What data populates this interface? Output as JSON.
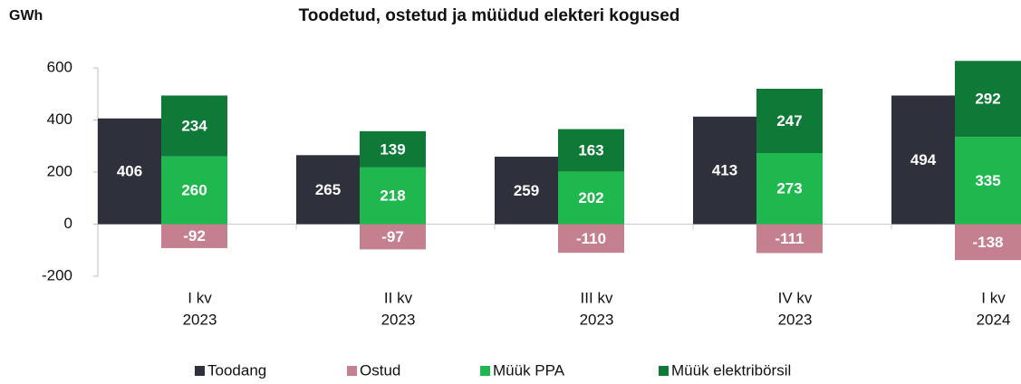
{
  "chart_data": {
    "type": "stacked_bar",
    "title": "Toodetud, ostetud ja müüdud elekteri kogused",
    "ylabel": "GWh",
    "categories": [
      [
        "I kv",
        "2023"
      ],
      [
        "II kv",
        "2023"
      ],
      [
        "III kv",
        "2023"
      ],
      [
        "IV kv",
        "2023"
      ],
      [
        "I kv",
        "2024"
      ]
    ],
    "series": [
      {
        "name": "Toodang",
        "color": "#2e303b",
        "stack": "a",
        "values": [
          406,
          265,
          259,
          413,
          494
        ]
      },
      {
        "name": "Ostud",
        "color": "#c4808f",
        "stack": "b",
        "values": [
          -92,
          -97,
          -110,
          -111,
          -138
        ]
      },
      {
        "name": "Müük PPA",
        "color": "#1fb84f",
        "stack": "b",
        "values": [
          260,
          218,
          202,
          273,
          335
        ]
      },
      {
        "name": "Müük elektribörsil",
        "color": "#0f7a38",
        "stack": "b",
        "values": [
          234,
          139,
          163,
          247,
          292
        ]
      }
    ],
    "ylim": [
      -200,
      600
    ],
    "yticks": [
      -200,
      0,
      200,
      400,
      600
    ],
    "legend": "bottom"
  }
}
